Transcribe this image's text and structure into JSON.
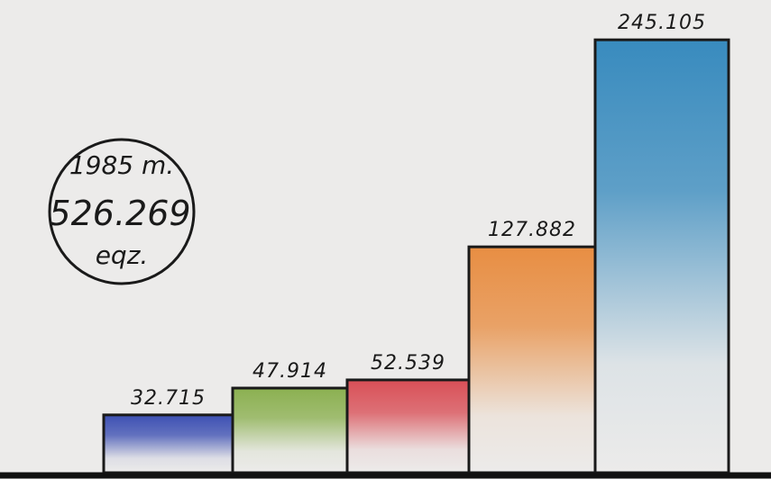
{
  "chart_data": {
    "type": "bar",
    "values": [
      32.715,
      47.914,
      52.539,
      127.882,
      245.105
    ],
    "colors": [
      "#3448b0",
      "#86ad48",
      "#d8474f",
      "#e8893a",
      "#2f86bc"
    ],
    "annotations": [
      "1985 m.",
      "526.269",
      "eqz."
    ],
    "ylim": [
      0,
      260
    ]
  }
}
